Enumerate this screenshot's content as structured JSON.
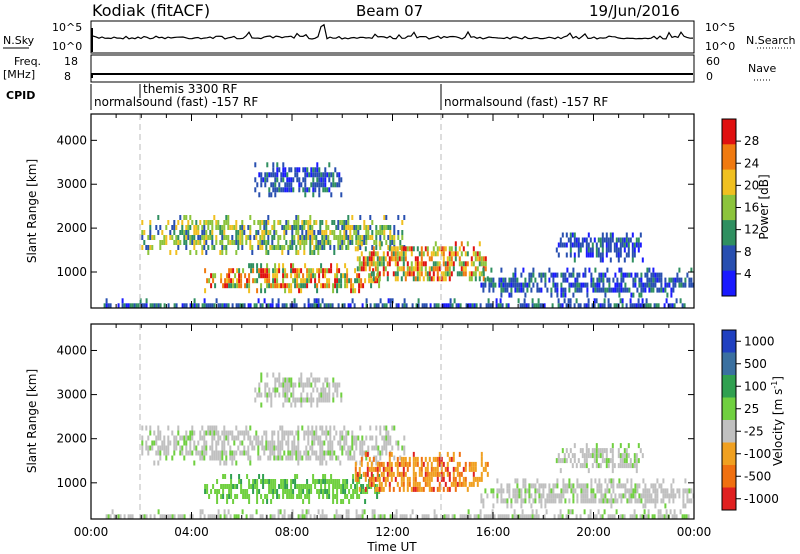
{
  "header": {
    "station": "Kodiak (fitACF)",
    "beam": "Beam 07",
    "date": "19/Jun/2016"
  },
  "strips": {
    "nsky_label": "N.Sky",
    "nsky_ticks": [
      "10^5",
      "10^0"
    ],
    "nsearch_label": "N.Search",
    "nsearch_ticks": [
      "10^5",
      "10^0"
    ],
    "freq_label": "Freq.",
    "freq_unit": "[MHz]",
    "freq_ticks": [
      "18",
      "8"
    ],
    "nave_label": "Nave",
    "nave_ticks": [
      "60",
      "0"
    ],
    "cpid_label": "CPID",
    "cpid_segments": [
      "themis 3300 RF",
      "normalsound (fast) -157 RF",
      "normalsound (fast) -157 RF"
    ]
  },
  "chart_data": [
    {
      "type": "heatmap",
      "panel": "power",
      "ylabel": "Slant Range [km]",
      "xlabel": "",
      "xlim": [
        0,
        24
      ],
      "ylim": [
        180,
        4600
      ],
      "x_ticks": [],
      "y_ticks": [
        "1000",
        "2000",
        "3000",
        "4000"
      ],
      "y_tick_values": [
        1000,
        2000,
        3000,
        4000
      ],
      "colorbar": {
        "label": "Power [dB]",
        "ticks": [
          "4",
          "8",
          "12",
          "16",
          "20",
          "24",
          "28"
        ],
        "colors": [
          "#1a1aff",
          "#284fb0",
          "#2f8f60",
          "#8cc43c",
          "#f0c020",
          "#f07a10",
          "#e01010"
        ]
      },
      "echo_regions": [
        {
          "t_start": 0.5,
          "t_end": 23.8,
          "r_low": 200,
          "r_high": 400,
          "level": "weak"
        },
        {
          "t_start": 2.0,
          "t_end": 12.5,
          "r_low": 1500,
          "r_high": 2300,
          "level": "moderate"
        },
        {
          "t_start": 4.5,
          "t_end": 11.5,
          "r_low": 600,
          "r_high": 1200,
          "level": "strong"
        },
        {
          "t_start": 6.5,
          "t_end": 10.0,
          "r_low": 2800,
          "r_high": 3500,
          "level": "weak"
        },
        {
          "t_start": 10.5,
          "t_end": 15.8,
          "r_low": 800,
          "r_high": 1700,
          "level": "strong"
        },
        {
          "t_start": 15.5,
          "t_end": 24.0,
          "r_low": 500,
          "r_high": 1100,
          "level": "weak"
        },
        {
          "t_start": 18.5,
          "t_end": 22.0,
          "r_low": 1300,
          "r_high": 1900,
          "level": "weak"
        }
      ]
    },
    {
      "type": "heatmap",
      "panel": "velocity",
      "ylabel": "Slant Range [km]",
      "xlabel": "Time UT",
      "xlim": [
        0,
        24
      ],
      "ylim": [
        180,
        4600
      ],
      "x_ticks": [
        "00:00",
        "04:00",
        "08:00",
        "12:00",
        "16:00",
        "20:00",
        "00:00"
      ],
      "x_tick_values": [
        0,
        4,
        8,
        12,
        16,
        20,
        24
      ],
      "y_ticks": [
        "1000",
        "2000",
        "3000",
        "4000"
      ],
      "y_tick_values": [
        1000,
        2000,
        3000,
        4000
      ],
      "colorbar": {
        "label": "Velocity [m s^-1]",
        "ticks": [
          "1000",
          "500",
          "100",
          "25",
          "-25",
          "-100",
          "-500",
          "-1000"
        ],
        "colors": [
          "#2040c0",
          "#3a70a0",
          "#30a050",
          "#70d040",
          "#c0c0c0",
          "#f0a020",
          "#f07010",
          "#e02020"
        ]
      },
      "echo_regions": [
        {
          "t_start": 0.5,
          "t_end": 23.8,
          "r_low": 200,
          "r_high": 400,
          "level": "ground"
        },
        {
          "t_start": 2.0,
          "t_end": 12.5,
          "r_low": 1500,
          "r_high": 2300,
          "level": "ground"
        },
        {
          "t_start": 4.5,
          "t_end": 11.5,
          "r_low": 600,
          "r_high": 1200,
          "level": "positive"
        },
        {
          "t_start": 6.5,
          "t_end": 10.0,
          "r_low": 2800,
          "r_high": 3500,
          "level": "ground"
        },
        {
          "t_start": 10.5,
          "t_end": 15.8,
          "r_low": 800,
          "r_high": 1700,
          "level": "negative"
        },
        {
          "t_start": 15.5,
          "t_end": 24.0,
          "r_low": 500,
          "r_high": 1100,
          "level": "ground"
        },
        {
          "t_start": 18.5,
          "t_end": 22.0,
          "r_low": 1300,
          "r_high": 1900,
          "level": "ground"
        }
      ]
    }
  ]
}
